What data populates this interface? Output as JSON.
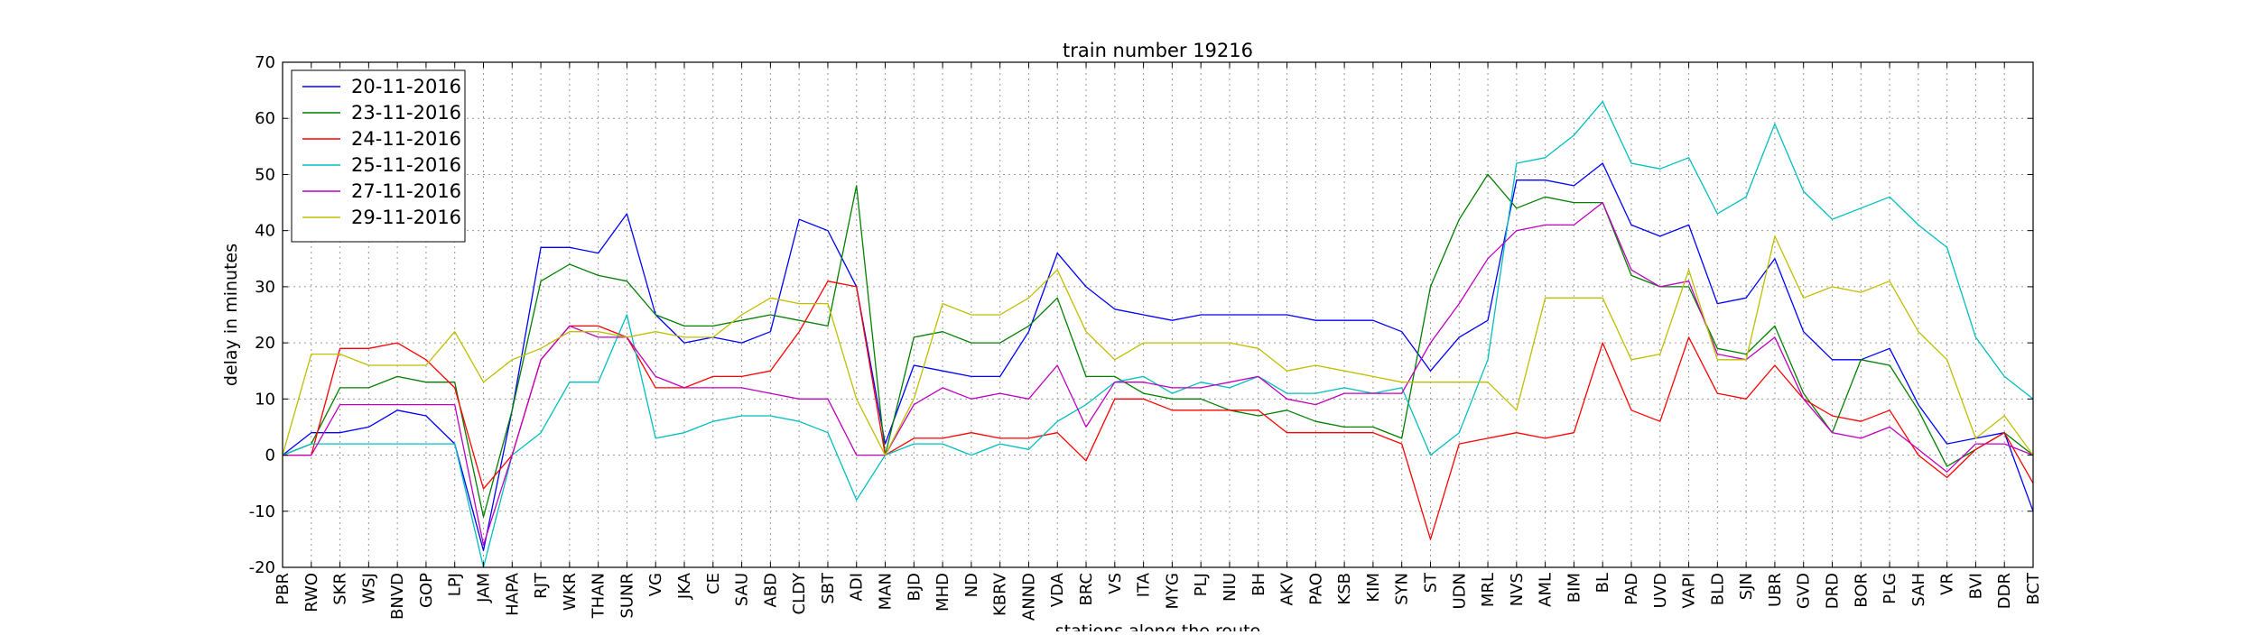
{
  "chart_data": {
    "type": "line",
    "title": "train number 19216",
    "xlabel": "stations along the route",
    "ylabel": "delay in minutes",
    "ylim": [
      -20,
      70
    ],
    "yticks": [
      -20,
      -10,
      0,
      10,
      20,
      30,
      40,
      50,
      60,
      70
    ],
    "grid": true,
    "legend_position": "top-left",
    "categories": [
      "PBR",
      "RWO",
      "SKR",
      "WSJ",
      "BNVD",
      "GOP",
      "LPJ",
      "JAM",
      "HAPA",
      "RJT",
      "WKR",
      "THAN",
      "SUNR",
      "VG",
      "JKA",
      "CE",
      "SAU",
      "ABD",
      "CLDY",
      "SBT",
      "ADI",
      "MAN",
      "BJD",
      "MHD",
      "ND",
      "KBRV",
      "ANND",
      "VDA",
      "BRC",
      "VS",
      "ITA",
      "MYG",
      "PLJ",
      "NIU",
      "BH",
      "AKV",
      "PAO",
      "KSB",
      "KIM",
      "SYN",
      "ST",
      "UDN",
      "MRL",
      "NVS",
      "AML",
      "BIM",
      "BL",
      "PAD",
      "UVD",
      "VAPI",
      "BLD",
      "SJN",
      "UBR",
      "GVD",
      "DRD",
      "BOR",
      "PLG",
      "SAH",
      "VR",
      "BVI",
      "DDR",
      "BCT"
    ],
    "series": [
      {
        "name": "20-11-2016",
        "color": "#0000ff",
        "values": [
          0,
          4,
          4,
          5,
          8,
          7,
          2,
          -17,
          8,
          37,
          37,
          36,
          43,
          25,
          20,
          21,
          20,
          22,
          42,
          40,
          30,
          2,
          16,
          15,
          14,
          14,
          22,
          36,
          30,
          26,
          25,
          24,
          25,
          25,
          25,
          25,
          24,
          24,
          24,
          22,
          15,
          21,
          24,
          49,
          49,
          48,
          52,
          41,
          39,
          41,
          27,
          28,
          35,
          22,
          17,
          17,
          19,
          9,
          2,
          3,
          4,
          -10
        ]
      },
      {
        "name": "23-11-2016",
        "color": "#008000",
        "values": [
          0,
          2,
          12,
          12,
          14,
          13,
          13,
          -11,
          8,
          31,
          34,
          32,
          31,
          25,
          23,
          23,
          24,
          25,
          24,
          23,
          48,
          0,
          21,
          22,
          20,
          20,
          23,
          28,
          14,
          14,
          11,
          10,
          10,
          8,
          7,
          8,
          6,
          5,
          5,
          3,
          30,
          42,
          50,
          44,
          46,
          45,
          45,
          32,
          30,
          30,
          19,
          18,
          23,
          11,
          4,
          17,
          16,
          8,
          -2,
          1,
          4,
          0
        ]
      },
      {
        "name": "24-11-2016",
        "color": "#ff0000",
        "values": [
          0,
          0,
          19,
          19,
          20,
          17,
          12,
          -6,
          0,
          17,
          23,
          23,
          21,
          12,
          12,
          14,
          14,
          15,
          22,
          31,
          30,
          0,
          3,
          3,
          4,
          3,
          3,
          4,
          -1,
          10,
          10,
          8,
          8,
          8,
          8,
          4,
          4,
          4,
          4,
          2,
          -15,
          2,
          3,
          4,
          3,
          4,
          20,
          8,
          6,
          21,
          11,
          10,
          16,
          10,
          7,
          6,
          8,
          0,
          -4,
          1,
          4,
          -5
        ]
      },
      {
        "name": "25-11-2016",
        "color": "#00bfbf",
        "values": [
          0,
          2,
          2,
          2,
          2,
          2,
          2,
          -20,
          0,
          4,
          13,
          13,
          25,
          3,
          4,
          6,
          7,
          7,
          6,
          4,
          -8,
          0,
          2,
          2,
          0,
          2,
          1,
          6,
          9,
          13,
          14,
          11,
          13,
          12,
          14,
          11,
          11,
          12,
          11,
          12,
          0,
          4,
          17,
          52,
          53,
          57,
          63,
          52,
          51,
          53,
          43,
          46,
          59,
          47,
          42,
          44,
          46,
          41,
          37,
          21,
          14,
          10
        ]
      },
      {
        "name": "27-11-2016",
        "color": "#bf00bf",
        "values": [
          0,
          0,
          9,
          9,
          9,
          9,
          9,
          -16,
          0,
          17,
          23,
          21,
          21,
          14,
          12,
          12,
          12,
          11,
          10,
          10,
          0,
          0,
          9,
          12,
          10,
          11,
          10,
          16,
          5,
          13,
          13,
          12,
          12,
          13,
          14,
          10,
          9,
          11,
          11,
          11,
          20,
          27,
          35,
          40,
          41,
          41,
          45,
          33,
          30,
          31,
          18,
          17,
          21,
          10,
          4,
          3,
          5,
          1,
          -3,
          2,
          2,
          0
        ]
      },
      {
        "name": "29-11-2016",
        "color": "#bfbf00",
        "values": [
          0,
          18,
          18,
          16,
          16,
          16,
          22,
          13,
          17,
          19,
          22,
          22,
          21,
          22,
          21,
          21,
          25,
          28,
          27,
          27,
          10,
          0,
          10,
          27,
          25,
          25,
          28,
          33,
          22,
          17,
          20,
          20,
          20,
          20,
          19,
          15,
          16,
          15,
          14,
          13,
          13,
          13,
          13,
          8,
          28,
          28,
          28,
          17,
          18,
          33,
          17,
          17,
          39,
          28,
          30,
          29,
          31,
          22,
          17,
          3,
          7,
          0
        ]
      }
    ]
  }
}
